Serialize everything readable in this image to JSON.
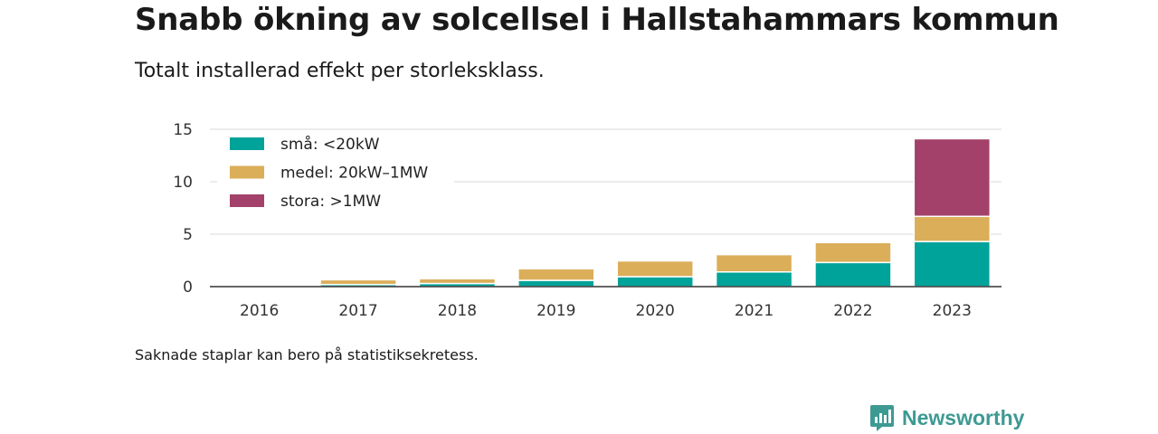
{
  "header": {
    "title": "Snabb ökning av solcellsel i Hallstahammars kommun",
    "subtitle": "Totalt installerad effekt per storleksklass."
  },
  "footnote": "Saknade staplar kan bero på statistiksekretess.",
  "brand": {
    "name": "Newsworthy",
    "icon": "newsworthy-logo-icon",
    "color": "#3d9a93"
  },
  "chart_data": {
    "type": "bar",
    "stacked": true,
    "categories": [
      "2016",
      "2017",
      "2018",
      "2019",
      "2020",
      "2021",
      "2022",
      "2023"
    ],
    "series": [
      {
        "name": "små: <20kW",
        "color": "#00a39a",
        "values": [
          0.05,
          0.2,
          0.3,
          0.6,
          0.95,
          1.4,
          2.3,
          4.3
        ]
      },
      {
        "name": "medel: 20kW–1MW",
        "color": "#dbae59",
        "values": [
          0.0,
          0.45,
          0.45,
          1.1,
          1.5,
          1.65,
          1.9,
          2.4
        ]
      },
      {
        "name": "stora: >1MW",
        "color": "#a3416a",
        "values": [
          0,
          0,
          0,
          0,
          0,
          0,
          0,
          7.4
        ]
      }
    ],
    "ylim": [
      0,
      15
    ],
    "yticks": [
      0,
      5,
      10,
      15
    ],
    "grid": true,
    "legend": "top-left",
    "xlabel": "",
    "ylabel": ""
  }
}
